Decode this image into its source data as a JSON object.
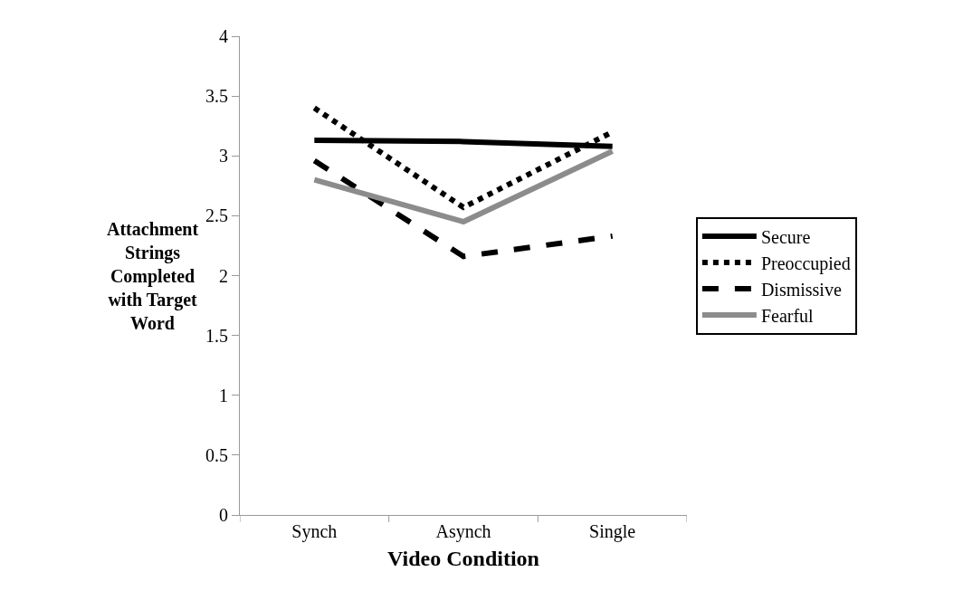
{
  "chart_data": {
    "type": "line",
    "xlabel": "Video Condition",
    "ylabel": "Attachment\nStrings\nCompleted\nwith Target\nWord",
    "categories": [
      "Synch",
      "Asynch",
      "Single"
    ],
    "ylim": [
      0,
      4
    ],
    "yticks": [
      0,
      0.5,
      1,
      1.5,
      2,
      2.5,
      3,
      3.5,
      4
    ],
    "legend": "right",
    "marker": "none",
    "series": [
      {
        "name": "Secure",
        "color": "#000000",
        "line_style": "solid",
        "values": [
          3.13,
          3.12,
          3.08
        ]
      },
      {
        "name": "Preoccupied",
        "color": "#000000",
        "line_style": "dotted",
        "values": [
          3.4,
          2.57,
          3.2
        ]
      },
      {
        "name": "Dismissive",
        "color": "#000000",
        "line_style": "dashed",
        "values": [
          2.96,
          2.16,
          2.33
        ]
      },
      {
        "name": "Fearful",
        "color": "#8c8c8c",
        "line_style": "solid",
        "values": [
          2.8,
          2.45,
          3.04
        ]
      }
    ]
  }
}
